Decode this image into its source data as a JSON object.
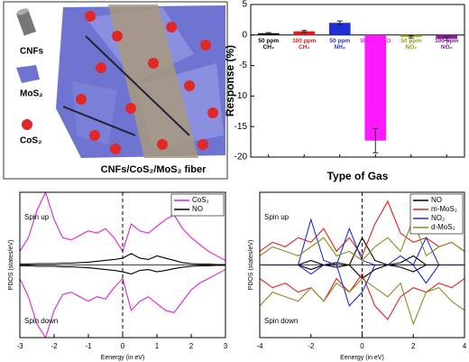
{
  "illustration": {
    "labels": [
      "CNFs",
      "MoS₂",
      "CoS₂"
    ],
    "caption": "CNFs/CoS₂/MoS₂ fiber"
  },
  "chart_data": [
    {
      "type": "bar",
      "ylabel": "Response (%)",
      "xlabel": "Type of Gas",
      "categories": [
        "50 ppm CH₄",
        "100 ppm CH₄",
        "50 ppm NH₃",
        "50 ppm NO",
        "50 ppm NO₂",
        "100 ppm NO₂"
      ],
      "values": [
        0.3,
        0.6,
        2.0,
        -17.3,
        -0.3,
        -0.6
      ],
      "errors": [
        0.1,
        0.15,
        0.3,
        2.0,
        0.2,
        0.3
      ],
      "colors": [
        "#000000",
        "#e8191b",
        "#1f2fd6",
        "#ff19ff",
        "#9a9a12",
        "#8b1a9e"
      ],
      "ylim": [
        -20,
        5
      ],
      "yticks": [
        -20,
        -15,
        -10,
        -5,
        0,
        5
      ]
    },
    {
      "type": "line",
      "xlabel": "Eenergy (in eV)",
      "ylabel": "PDOS (states/eV)",
      "annotations": [
        "Spin up",
        "Spin down"
      ],
      "x": [
        -3,
        -2.75,
        -2.5,
        -2.25,
        -2,
        -1.75,
        -1.5,
        -1.25,
        -1,
        -0.75,
        -0.5,
        -0.25,
        0,
        0.25,
        0.5,
        0.75,
        1,
        1.25,
        1.5,
        1.75,
        2,
        2.25,
        2.5,
        2.75,
        3
      ],
      "xlim": [
        -3,
        3
      ],
      "xticks": [
        -3,
        -2,
        -1,
        0,
        1,
        2,
        3
      ],
      "ylim": [
        -1.6,
        1.6
      ],
      "series": [
        {
          "name": "CoS₂",
          "color": "#e020e0",
          "up": [
            0.3,
            0.6,
            1.2,
            1.6,
            1.0,
            0.6,
            0.55,
            0.65,
            0.75,
            0.7,
            0.8,
            0.6,
            0.3,
            0.9,
            0.75,
            0.7,
            0.85,
            1.0,
            1.1,
            0.8,
            0.6,
            0.45,
            0.3,
            0.2,
            0.1
          ],
          "down": [
            -0.3,
            -0.7,
            -1.3,
            -1.6,
            -1.0,
            -0.65,
            -0.6,
            -0.7,
            -0.8,
            -0.7,
            -0.75,
            -0.5,
            -0.3,
            -1.0,
            -0.8,
            -0.7,
            -0.85,
            -1.0,
            -1.05,
            -0.8,
            -0.55,
            -0.4,
            -0.3,
            -0.2,
            -0.1
          ]
        },
        {
          "name": "NO",
          "color": "#000000",
          "up": [
            0.02,
            0.02,
            0.03,
            0.03,
            0.03,
            0.04,
            0.04,
            0.05,
            0.06,
            0.08,
            0.1,
            0.12,
            0.15,
            0.25,
            0.15,
            0.12,
            0.2,
            0.15,
            0.1,
            0.05,
            0.03,
            0.02,
            0.02,
            0.01,
            0.01
          ],
          "down": [
            -0.02,
            -0.02,
            -0.03,
            -0.03,
            -0.03,
            -0.04,
            -0.04,
            -0.05,
            -0.06,
            -0.08,
            -0.1,
            -0.12,
            -0.15,
            -0.2,
            -0.12,
            -0.1,
            -0.15,
            -0.12,
            -0.08,
            -0.05,
            -0.03,
            -0.02,
            -0.02,
            -0.01,
            -0.01
          ]
        }
      ]
    },
    {
      "type": "line",
      "xlabel": "Eenergy (in eV)",
      "ylabel": "PDOS (states/eV)",
      "annotations": [
        "Spin up",
        "Spin down"
      ],
      "x": [
        -4,
        -3.5,
        -3,
        -2.5,
        -2,
        -1.5,
        -1,
        -0.5,
        0,
        0.5,
        1,
        1.5,
        2,
        2.5,
        3,
        3.5,
        4
      ],
      "xlim": [
        -4,
        4
      ],
      "xticks": [
        -4,
        -2,
        0,
        2,
        4
      ],
      "ylim": [
        -1.6,
        1.6
      ],
      "series": [
        {
          "name": "NO",
          "color": "#000000",
          "up": [
            0,
            0,
            0,
            0,
            0.1,
            0,
            0.05,
            0,
            0.6,
            0.1,
            0,
            0.05,
            0.2,
            0,
            0,
            0,
            0
          ],
          "down": [
            0,
            0,
            0,
            0,
            -0.1,
            0,
            -0.05,
            0,
            -0.3,
            -0.1,
            0,
            -0.05,
            -0.15,
            0,
            0,
            0,
            0
          ]
        },
        {
          "name": "m-MoS₂",
          "color": "#e02020",
          "up": [
            0.3,
            0.5,
            0.4,
            0.6,
            0.5,
            0.8,
            0.3,
            0.6,
            0.2,
            0.9,
            1.4,
            0.7,
            0.5,
            0.6,
            0.4,
            0.5,
            0.3
          ],
          "down": [
            -0.3,
            -0.5,
            -0.4,
            -0.6,
            -0.5,
            -0.8,
            -0.3,
            -0.6,
            -0.2,
            -0.9,
            -1.2,
            -0.7,
            -0.5,
            -0.6,
            -0.4,
            -0.5,
            -0.3
          ]
        },
        {
          "name": "NO₂",
          "color": "#1f2fd6",
          "up": [
            0,
            0,
            0,
            0,
            1.0,
            0.1,
            0,
            0.8,
            0.1,
            0,
            0,
            0.2,
            0,
            0.6,
            0,
            0,
            0
          ],
          "down": [
            0,
            0,
            0,
            0,
            -0.2,
            0,
            0,
            -0.9,
            -0.6,
            0,
            0,
            0,
            0,
            -0.4,
            0,
            0,
            0
          ]
        },
        {
          "name": "d-MoS₂",
          "color": "#8c8c1c",
          "up": [
            0.2,
            0.4,
            0.3,
            0.2,
            0.4,
            0.6,
            0.2,
            0.3,
            0.1,
            0.4,
            0.6,
            0.3,
            1.0,
            0.2,
            0.4,
            0.5,
            0.3
          ],
          "down": [
            -0.9,
            -0.6,
            -0.7,
            -0.8,
            -0.5,
            -0.8,
            -0.4,
            -0.6,
            -0.3,
            -0.5,
            -0.7,
            -0.4,
            -1.3,
            -0.6,
            -0.5,
            -0.8,
            -1.0
          ]
        }
      ]
    }
  ]
}
